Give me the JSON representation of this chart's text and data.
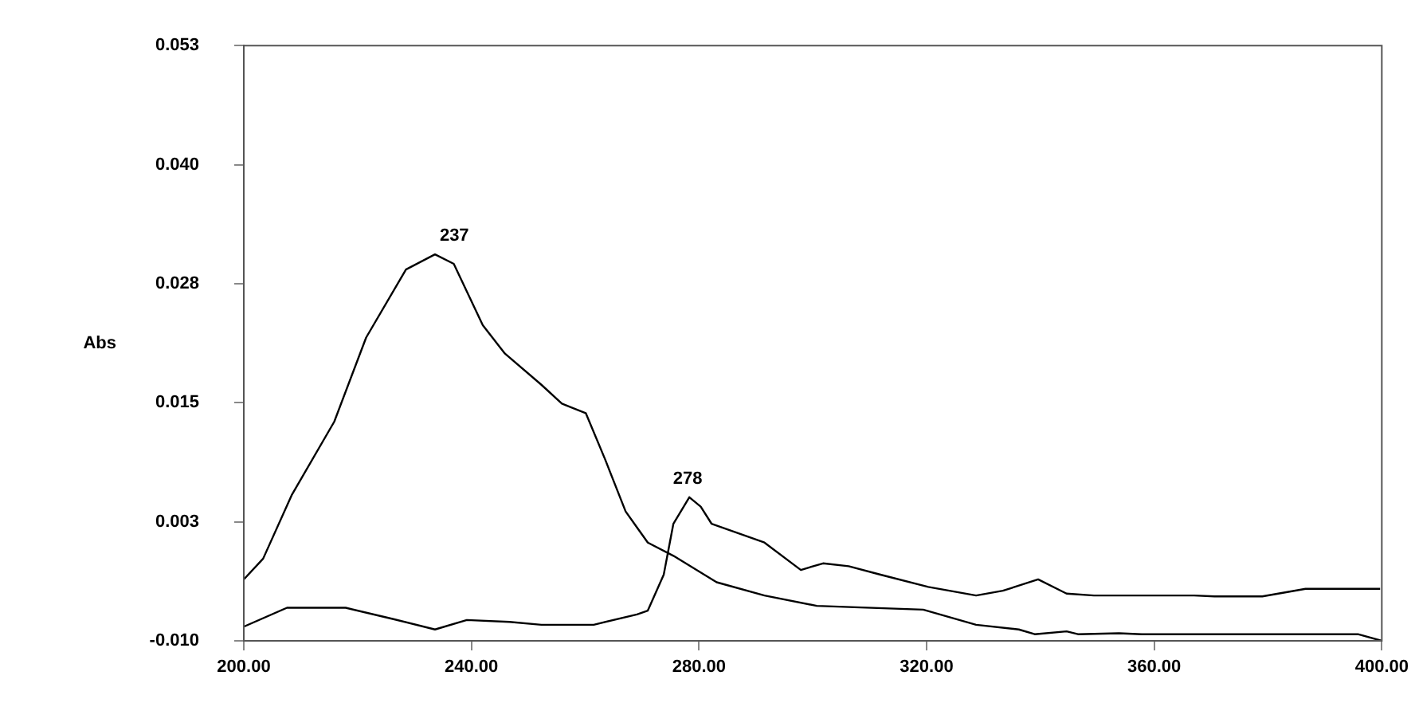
{
  "chart_data": {
    "type": "line",
    "ylabel": "Abs",
    "series": [
      {
        "color": "#000000",
        "x": [
          200,
          203.4,
          208.4,
          215.9,
          221.5,
          228.5,
          233.6,
          236.9,
          242,
          245.9,
          252.3,
          255.9,
          260.1,
          263.5,
          267.1,
          269.1,
          271,
          275.5,
          283.1,
          291.5,
          300.7,
          319.4,
          328.7,
          336.2,
          339,
          344.6,
          346.6,
          353.8,
          357.8,
          395.8,
          400
        ],
        "values": [
          -0.0035,
          -0.0013,
          0.0054,
          0.0132,
          0.0221,
          0.0293,
          0.0309,
          0.0299,
          0.0234,
          0.0204,
          0.0171,
          0.0151,
          0.0141,
          0.0092,
          0.0037,
          0.002,
          0.0004,
          -0.001,
          -0.0038,
          -0.0052,
          -0.0063,
          -0.0067,
          -0.0083,
          -0.0088,
          -0.0093,
          -0.009,
          -0.0093,
          -0.0092,
          -0.0093,
          -0.0093,
          -0.01
        ]
      },
      {
        "color": "#000000",
        "x": [
          200,
          207.6,
          217.9,
          226.3,
          233.6,
          239.2,
          246.7,
          252.3,
          261.5,
          269.1,
          271,
          273.8,
          275.5,
          278.3,
          280.3,
          282.2,
          291.5,
          297.9,
          301.8,
          306.3,
          311.9,
          320.3,
          328.7,
          333.4,
          339.6,
          344.6,
          349.4,
          367,
          370.6,
          379,
          386.6,
          399.7
        ],
        "values": [
          -0.0085,
          -0.0065,
          -0.0065,
          -0.0077,
          -0.0088,
          -0.0078,
          -0.008,
          -0.0083,
          -0.0083,
          -0.0072,
          -0.0068,
          -0.003,
          0.0024,
          0.0052,
          0.0042,
          0.0024,
          0.0004,
          -0.0025,
          -0.0018,
          -0.0021,
          -0.003,
          -0.0043,
          -0.0052,
          -0.0047,
          -0.0035,
          -0.005,
          -0.0052,
          -0.0052,
          -0.0053,
          -0.0053,
          -0.0045,
          -0.0045
        ]
      }
    ],
    "xlim": [
      200,
      400
    ],
    "xticks": [
      {
        "value": 200,
        "label": "200.00"
      },
      {
        "value": 240,
        "label": "240.00"
      },
      {
        "value": 280,
        "label": "280.00"
      },
      {
        "value": 320,
        "label": "320.00"
      },
      {
        "value": 360,
        "label": "360.00"
      },
      {
        "value": 400,
        "label": "400.00"
      }
    ],
    "ylim": [
      -0.01,
      0.053
    ],
    "yticks": [
      {
        "value": -0.01,
        "label": "-0.010"
      },
      {
        "value": 0.0026,
        "label": "0.003"
      },
      {
        "value": 0.0152,
        "label": "0.015"
      },
      {
        "value": 0.0278,
        "label": "0.028"
      },
      {
        "value": 0.0404,
        "label": "0.040"
      },
      {
        "value": 0.053,
        "label": "0.053"
      }
    ],
    "annotations": [
      {
        "text": "237",
        "x": 237,
        "y": 0.0309
      },
      {
        "text": "278",
        "x": 278,
        "y": 0.0052
      }
    ],
    "grid": false,
    "legend": false,
    "marker": "none",
    "line_style": "solid"
  }
}
